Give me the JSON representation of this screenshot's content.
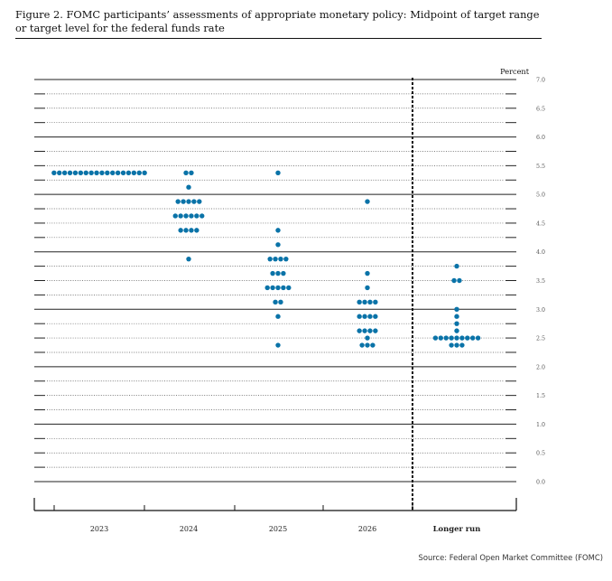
{
  "figure": {
    "title": "Figure 2.  FOMC participants’ assessments of appropriate monetary policy: Midpoint of target range or target level for the federal funds rate",
    "source": "Source: Federal Open Market Committee (FOMC)"
  },
  "chart_data": {
    "type": "scatter",
    "title": "Figure 2.  FOMC participants’ assessments of appropriate monetary policy: Midpoint of target range or target level for the federal funds rate",
    "ylabel": "Percent",
    "xlabel": "",
    "ylim": [
      0,
      7
    ],
    "yticks": [
      "0.0",
      "0.5",
      "1.0",
      "1.5",
      "2.0",
      "2.5",
      "3.0",
      "3.5",
      "4.0",
      "4.5",
      "5.0",
      "5.5",
      "6.0",
      "6.5",
      "7.0"
    ],
    "categories": [
      "2023",
      "2024",
      "2025",
      "2026",
      "Longer run"
    ],
    "dot_color": "#0a73a8",
    "grid": true,
    "groups": [
      {
        "x": "2023",
        "dots": [
          {
            "y": 5.375,
            "count": 18
          }
        ]
      },
      {
        "x": "2024",
        "dots": [
          {
            "y": 5.375,
            "count": 2
          },
          {
            "y": 5.125,
            "count": 1
          },
          {
            "y": 4.875,
            "count": 5
          },
          {
            "y": 4.625,
            "count": 6
          },
          {
            "y": 4.375,
            "count": 4
          },
          {
            "y": 3.875,
            "count": 1
          }
        ]
      },
      {
        "x": "2025",
        "dots": [
          {
            "y": 5.375,
            "count": 1
          },
          {
            "y": 4.375,
            "count": 1
          },
          {
            "y": 4.125,
            "count": 1
          },
          {
            "y": 3.875,
            "count": 4
          },
          {
            "y": 3.625,
            "count": 3
          },
          {
            "y": 3.375,
            "count": 5
          },
          {
            "y": 3.125,
            "count": 2
          },
          {
            "y": 2.875,
            "count": 1
          },
          {
            "y": 2.375,
            "count": 1
          }
        ]
      },
      {
        "x": "2026",
        "dots": [
          {
            "y": 4.875,
            "count": 1
          },
          {
            "y": 3.625,
            "count": 1
          },
          {
            "y": 3.375,
            "count": 1
          },
          {
            "y": 3.125,
            "count": 4
          },
          {
            "y": 2.875,
            "count": 4
          },
          {
            "y": 2.625,
            "count": 4
          },
          {
            "y": 2.5,
            "count": 1
          },
          {
            "y": 2.375,
            "count": 3
          }
        ]
      },
      {
        "x": "Longer run",
        "dots": [
          {
            "y": 3.75,
            "count": 1
          },
          {
            "y": 3.5,
            "count": 2
          },
          {
            "y": 3.0,
            "count": 1
          },
          {
            "y": 2.875,
            "count": 1
          },
          {
            "y": 2.75,
            "count": 1
          },
          {
            "y": 2.625,
            "count": 1
          },
          {
            "y": 2.5,
            "count": 9
          },
          {
            "y": 2.375,
            "count": 3
          }
        ]
      }
    ]
  }
}
